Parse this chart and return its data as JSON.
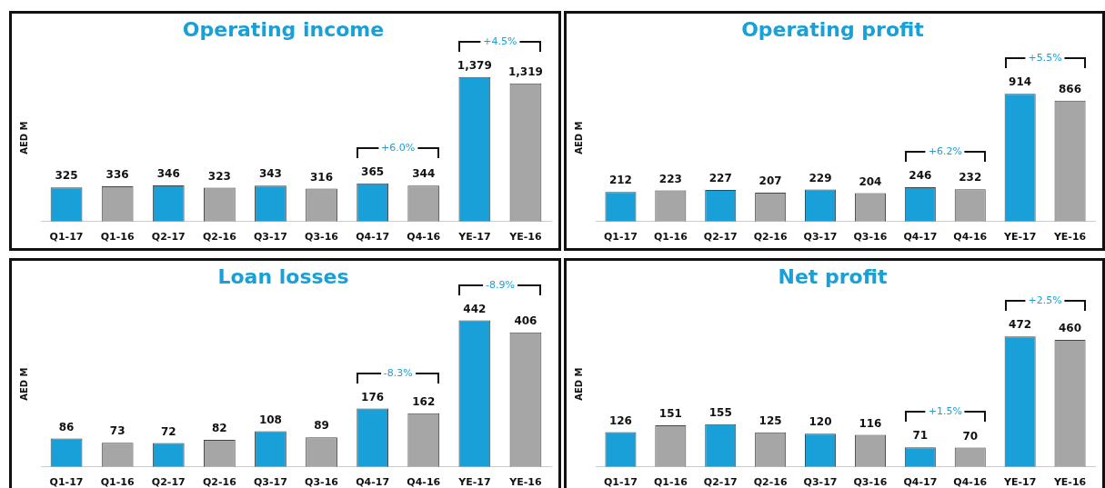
{
  "chart_data": [
    {
      "type": "bar",
      "title": "Operating income",
      "ylabel": "AED M",
      "categories": [
        "Q1-17",
        "Q1-16",
        "Q2-17",
        "Q2-16",
        "Q3-17",
        "Q3-16",
        "Q4-17",
        "Q4-16",
        "YE-17",
        "YE-16"
      ],
      "values": [
        325,
        336,
        346,
        323,
        343,
        316,
        365,
        344,
        1379,
        1319
      ],
      "value_labels": [
        "325",
        "336",
        "346",
        "323",
        "343",
        "316",
        "365",
        "344",
        "1,379",
        "1,319"
      ],
      "colors": [
        "#1aa0d8",
        "#a6a6a6",
        "#1aa0d8",
        "#a6a6a6",
        "#1aa0d8",
        "#a6a6a6",
        "#1aa0d8",
        "#a6a6a6",
        "#1aa0d8",
        "#a6a6a6"
      ],
      "annotations": [
        "+6.0%",
        "+4.5%"
      ],
      "grid": false,
      "legend": false,
      "tick_labels": "x"
    },
    {
      "type": "bar",
      "title": "Operating profit",
      "ylabel": "AED M",
      "categories": [
        "Q1-17",
        "Q1-16",
        "Q2-17",
        "Q2-16",
        "Q3-17",
        "Q3-16",
        "Q4-17",
        "Q4-16",
        "YE-17",
        "YE-16"
      ],
      "values": [
        212,
        223,
        227,
        207,
        229,
        204,
        246,
        232,
        914,
        866
      ],
      "value_labels": [
        "212",
        "223",
        "227",
        "207",
        "229",
        "204",
        "246",
        "232",
        "914",
        "866"
      ],
      "colors": [
        "#1aa0d8",
        "#a6a6a6",
        "#1aa0d8",
        "#a6a6a6",
        "#1aa0d8",
        "#a6a6a6",
        "#1aa0d8",
        "#a6a6a6",
        "#1aa0d8",
        "#a6a6a6"
      ],
      "annotations": [
        "+6.2%",
        "+5.5%"
      ],
      "grid": false,
      "legend": false,
      "tick_labels": "x"
    },
    {
      "type": "bar",
      "title": "Loan losses",
      "ylabel": "AED M",
      "categories": [
        "Q1-17",
        "Q1-16",
        "Q2-17",
        "Q2-16",
        "Q3-17",
        "Q3-16",
        "Q4-17",
        "Q4-16",
        "YE-17",
        "YE-16"
      ],
      "values": [
        86,
        73,
        72,
        82,
        108,
        89,
        176,
        162,
        442,
        406
      ],
      "value_labels": [
        "86",
        "73",
        "72",
        "82",
        "108",
        "89",
        "176",
        "162",
        "442",
        "406"
      ],
      "colors": [
        "#1aa0d8",
        "#a6a6a6",
        "#1aa0d8",
        "#a6a6a6",
        "#1aa0d8",
        "#a6a6a6",
        "#1aa0d8",
        "#a6a6a6",
        "#1aa0d8",
        "#a6a6a6"
      ],
      "annotations": [
        "-8.3%",
        "-8.9%"
      ],
      "grid": false,
      "legend": false,
      "tick_labels": "x"
    },
    {
      "type": "bar",
      "title": "Net profit",
      "ylabel": "AED M",
      "categories": [
        "Q1-17",
        "Q1-16",
        "Q2-17",
        "Q2-16",
        "Q3-17",
        "Q3-16",
        "Q4-17",
        "Q4-16",
        "YE-17",
        "YE-16"
      ],
      "values": [
        126,
        151,
        155,
        125,
        120,
        116,
        71,
        70,
        472,
        460
      ],
      "value_labels": [
        "126",
        "151",
        "155",
        "125",
        "120",
        "116",
        "71",
        "70",
        "472",
        "460"
      ],
      "colors": [
        "#1aa0d8",
        "#a6a6a6",
        "#1aa0d8",
        "#a6a6a6",
        "#1aa0d8",
        "#a6a6a6",
        "#1aa0d8",
        "#a6a6a6",
        "#1aa0d8",
        "#a6a6a6"
      ],
      "annotations": [
        "+1.5%",
        "+2.5%"
      ],
      "grid": false,
      "legend": false,
      "tick_labels": "x"
    }
  ]
}
